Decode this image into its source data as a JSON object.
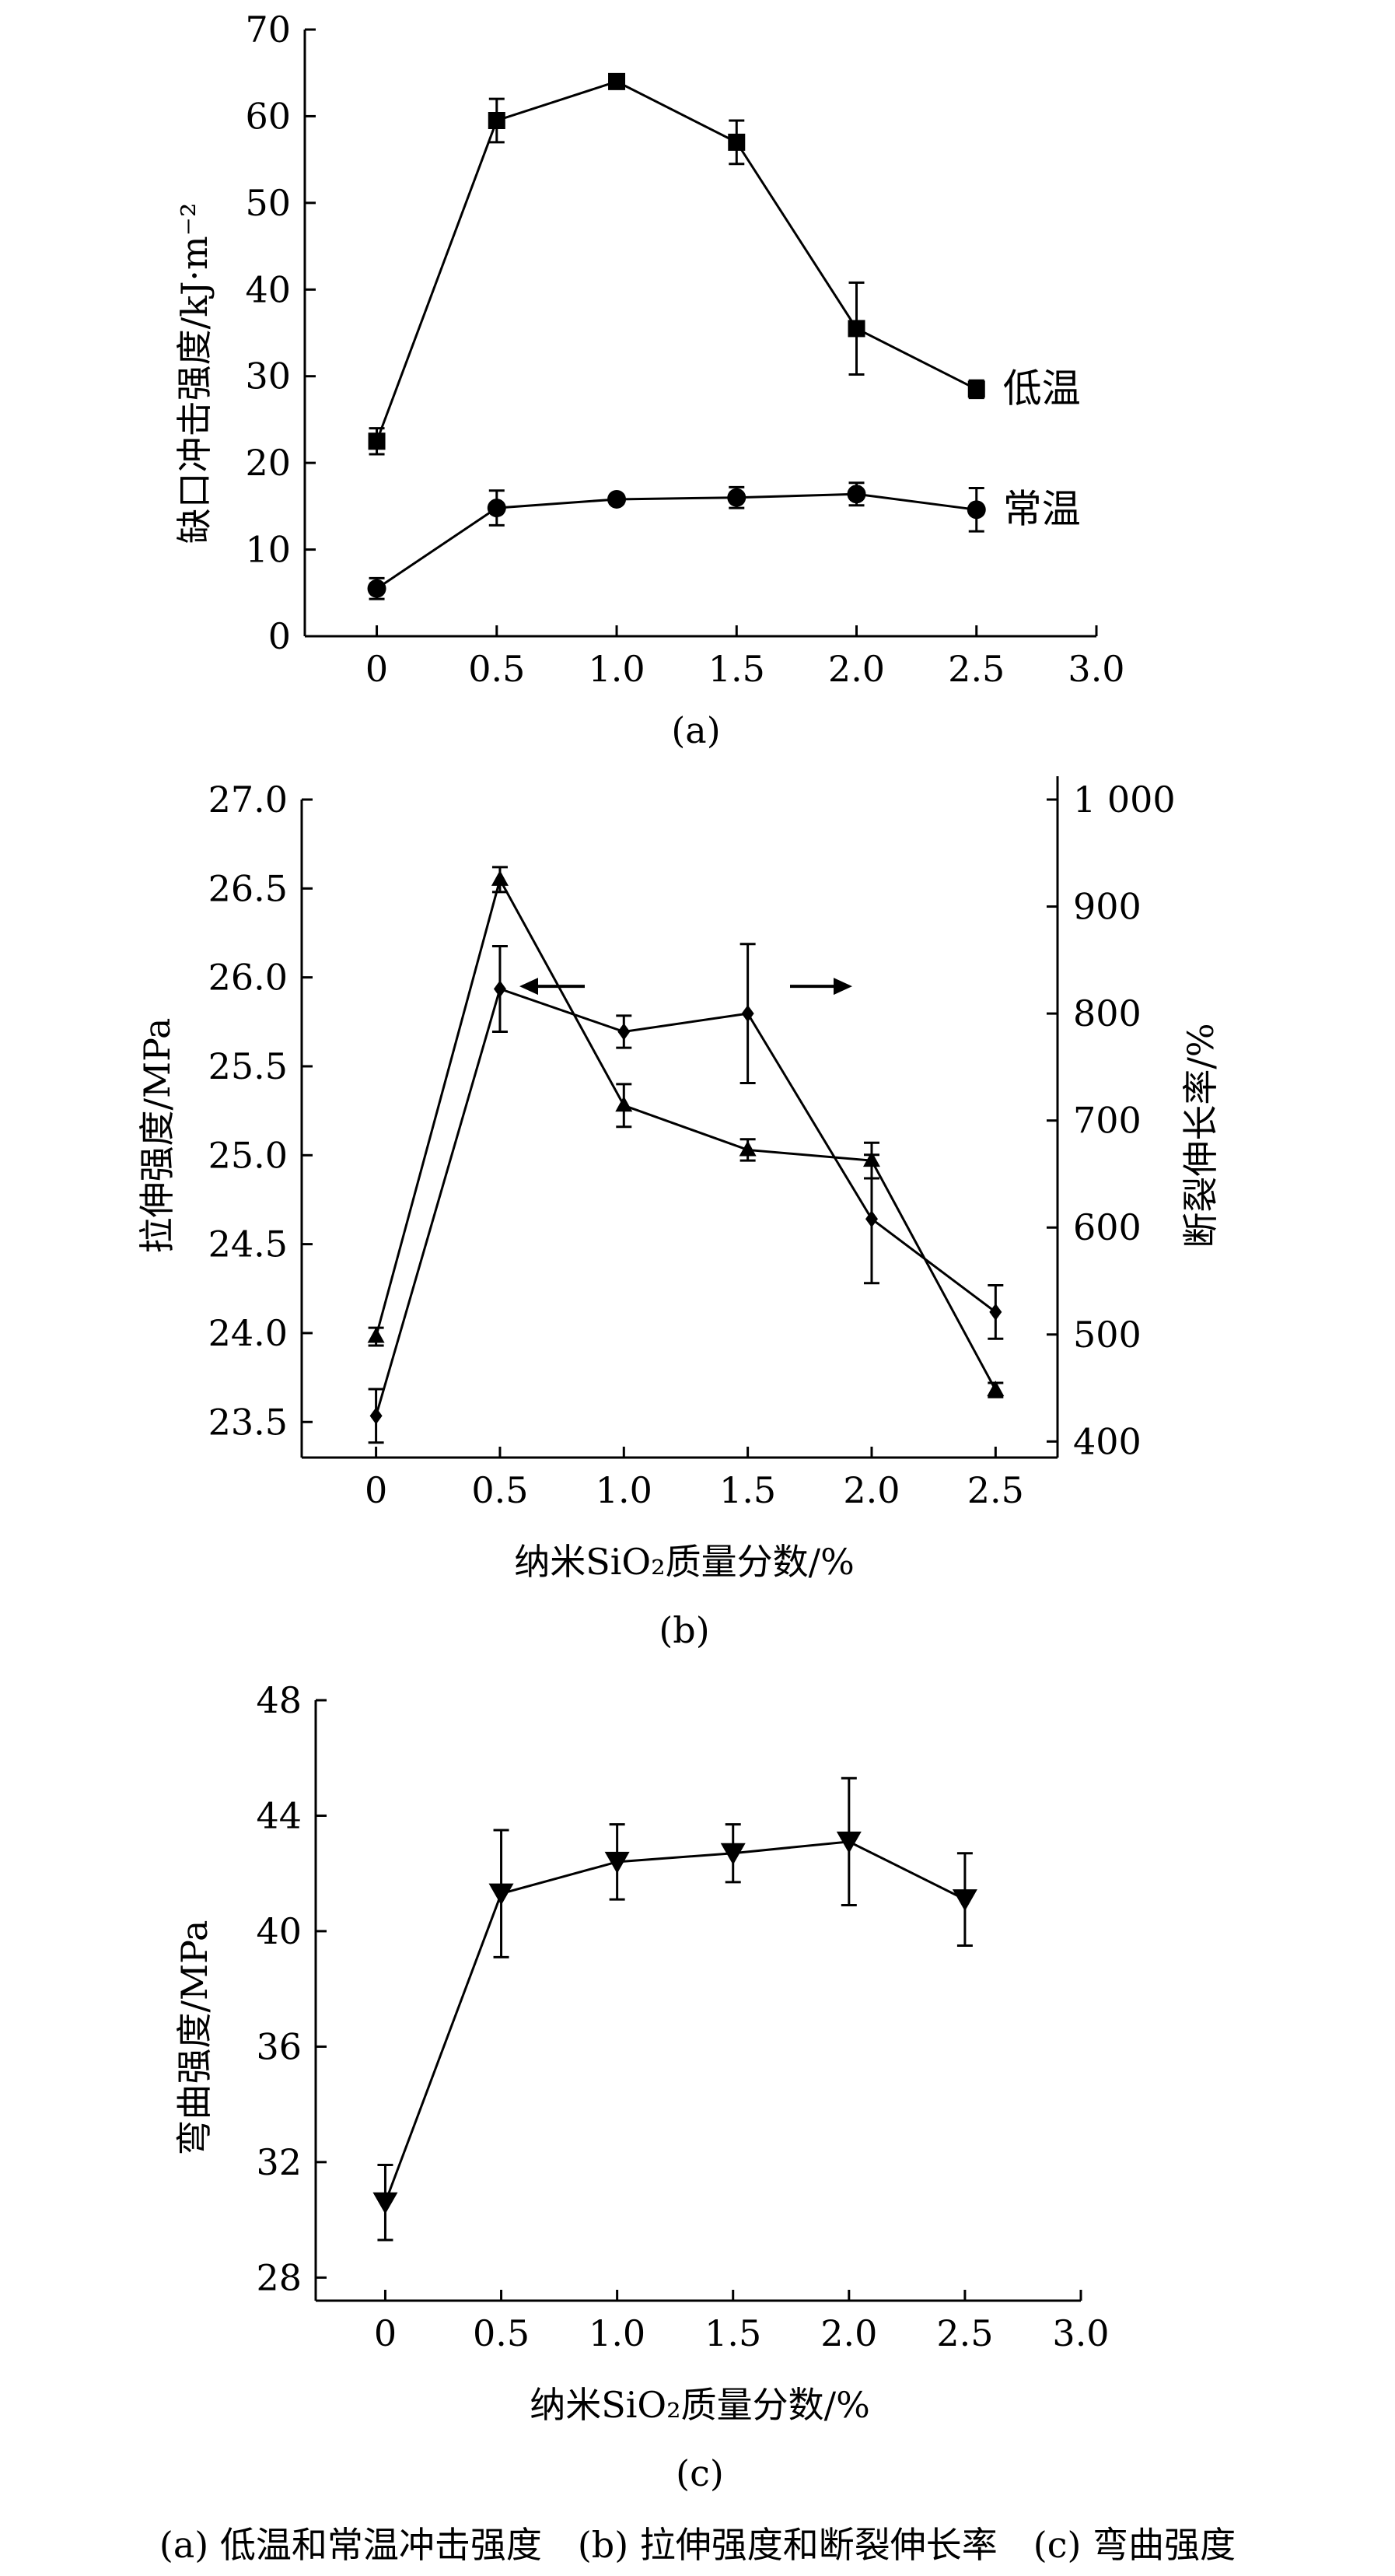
{
  "chart_data": [
    {
      "type": "line",
      "panel_label": "(a)",
      "ylabel": "缺口冲击强度/kJ·m⁻²",
      "ylim": [
        0,
        70
      ],
      "yticks": [
        0,
        10,
        20,
        30,
        40,
        50,
        60,
        70
      ],
      "xlim": [
        -0.3,
        3.0
      ],
      "xticks": [
        0,
        0.5,
        1.0,
        1.5,
        2.0,
        2.5,
        3.0
      ],
      "xticklabels": [
        "0",
        "0.5",
        "1.0",
        "1.5",
        "2.0",
        "2.5",
        "3.0"
      ],
      "x": [
        0,
        0.5,
        1.0,
        1.5,
        2.0,
        2.5
      ],
      "series": [
        {
          "name": "低温",
          "marker": "square",
          "values": [
            22.5,
            59.5,
            64.0,
            57.0,
            35.5,
            28.5
          ],
          "errors": [
            1.5,
            2.5,
            0.5,
            2.5,
            5.3,
            1.0
          ]
        },
        {
          "name": "常温",
          "marker": "circle",
          "values": [
            5.5,
            14.8,
            15.8,
            16.0,
            16.4,
            14.6
          ],
          "errors": [
            1.2,
            2.0,
            0.5,
            1.2,
            1.3,
            2.5
          ]
        }
      ]
    },
    {
      "type": "line",
      "panel_label": "(b)",
      "xlabel": "纳米SiO₂质量分数/%",
      "ylabel": "拉伸强度/MPa",
      "ylabel_right": "断裂伸长率/%",
      "ylim": [
        23.3,
        27.0
      ],
      "yticks": [
        23.5,
        24.0,
        24.5,
        25.0,
        25.5,
        26.0,
        26.5,
        27.0
      ],
      "yticklabels": [
        "23.5",
        "24.0",
        "24.5",
        "25.0",
        "25.5",
        "26.0",
        "26.5",
        "27.0"
      ],
      "ylim_right": [
        385,
        1000
      ],
      "yticks_right": [
        400,
        500,
        600,
        700,
        800,
        900,
        1000
      ],
      "yticklabels_right": [
        "400",
        "500",
        "600",
        "700",
        "800",
        "900",
        "1 000"
      ],
      "xlim": [
        -0.3,
        2.75
      ],
      "xticks": [
        0,
        0.5,
        1.0,
        1.5,
        2.0,
        2.5
      ],
      "xticklabels": [
        "0",
        "0.5",
        "1.0",
        "1.5",
        "2.0",
        "2.5"
      ],
      "x": [
        0,
        0.5,
        1.0,
        1.5,
        2.0,
        2.5
      ],
      "series": [
        {
          "axis": "left",
          "marker": "triangle-up",
          "values": [
            23.98,
            26.55,
            25.28,
            25.03,
            24.97,
            23.68
          ],
          "errors": [
            0.05,
            0.07,
            0.12,
            0.06,
            0.1,
            0.04
          ]
        },
        {
          "axis": "right",
          "marker": "diamond",
          "values": [
            424,
            823,
            783,
            800,
            608,
            521
          ],
          "errors": [
            25,
            40,
            15,
            65,
            60,
            25
          ]
        }
      ]
    },
    {
      "type": "line",
      "panel_label": "(c)",
      "xlabel": "纳米SiO₂质量分数/%",
      "ylabel": "弯曲强度/MPa",
      "ylim": [
        27.2,
        48
      ],
      "yticks": [
        28,
        32,
        36,
        40,
        44,
        48
      ],
      "xlim": [
        -0.3,
        3.0
      ],
      "xticks": [
        0,
        0.5,
        1.0,
        1.5,
        2.0,
        2.5,
        3.0
      ],
      "xticklabels": [
        "0",
        "0.5",
        "1.0",
        "1.5",
        "2.0",
        "2.5",
        "3.0"
      ],
      "x": [
        0,
        0.5,
        1.0,
        1.5,
        2.0,
        2.5
      ],
      "series": [
        {
          "marker": "triangle-down",
          "values": [
            30.6,
            41.3,
            42.4,
            42.7,
            43.1,
            41.1
          ],
          "errors": [
            1.3,
            2.2,
            1.3,
            1.0,
            2.2,
            1.6
          ]
        }
      ]
    }
  ],
  "caption": "(a) 低温和常温冲击强度　(b) 拉伸强度和断裂伸长率　(c) 弯曲强度"
}
